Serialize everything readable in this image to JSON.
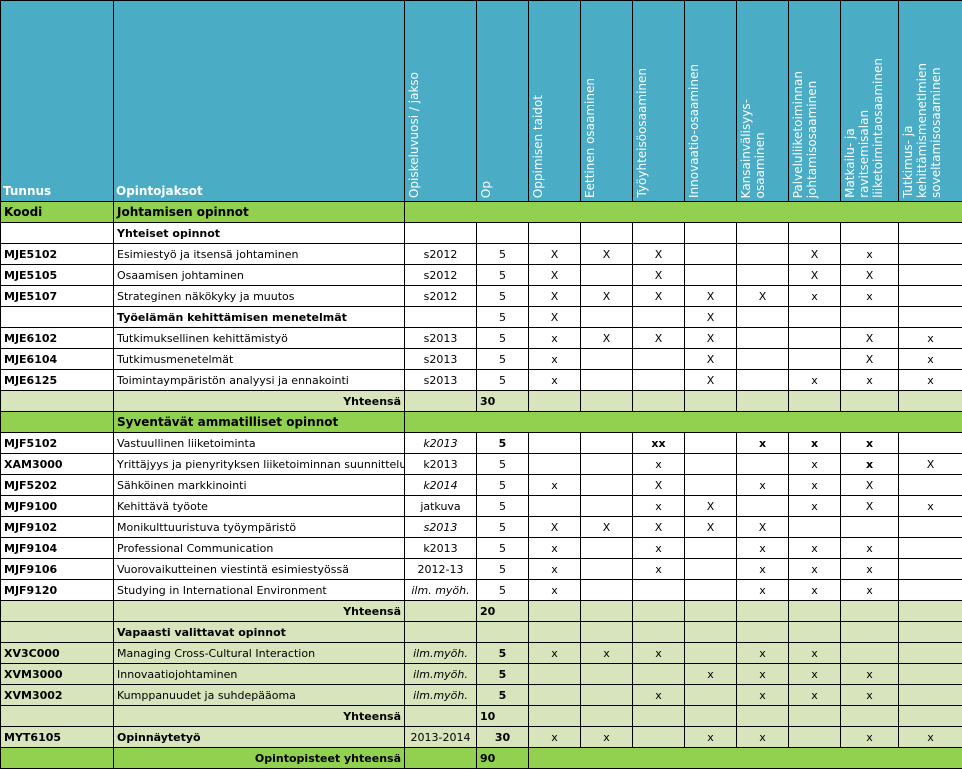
{
  "headers": {
    "tunnus": "Tunnus",
    "opintojaksot": "Opintojaksot",
    "year": "Opiskeluvuosi / jakso",
    "op": "Op",
    "competences": [
      "Oppimisen taidot",
      "Eettinen osaaminen",
      "Työyhteisöosaaminen",
      "Innovaatio-osaaminen",
      "Kansainvälisyys-\nosaaminen",
      "Palveluliiketoiminnan\njohtamisosaaminen",
      "Matkailu- ja\nravitsemisalan\nliiketoimintaosaaminen",
      "Tutkimus- ja\nkehittämismenetlmien\nsoveltamisosaaminen"
    ]
  },
  "colors": {
    "header": "#4bacc6",
    "section": "#92d050",
    "light": "#d8e4bc"
  },
  "rows": [
    {
      "type": "green",
      "code": "Koodi",
      "name": "Johtamisen opinnot"
    },
    {
      "type": "sub",
      "name": "Yhteiset opinnot"
    },
    {
      "type": "course",
      "code": "MJE5102",
      "name": "Esimiestyö ja itsensä johtaminen",
      "year": "s2012",
      "op": "5",
      "marks": [
        "X",
        "X",
        "X",
        "",
        "",
        "X",
        "x",
        ""
      ]
    },
    {
      "type": "course",
      "code": "MJE5105",
      "name": "Osaamisen johtaminen",
      "year": "s2012",
      "op": "5",
      "marks": [
        "X",
        "",
        "X",
        "",
        "",
        "X",
        "X",
        ""
      ]
    },
    {
      "type": "course",
      "code": "MJE5107",
      "name": "Strateginen näkökyky ja muutos",
      "year": "s2012",
      "op": "5",
      "marks": [
        "X",
        "X",
        "X",
        "X",
        "X",
        "x",
        "x",
        ""
      ]
    },
    {
      "type": "subcourse",
      "name": "Työelämän kehittämisen menetelmät",
      "op": "5",
      "marks": [
        "X",
        "",
        "",
        "X",
        "",
        "",
        "",
        ""
      ]
    },
    {
      "type": "course",
      "code": "MJE6102",
      "name": "Tutkimuksellinen kehittämistyö",
      "year": "s2013",
      "op": "5",
      "marks": [
        "x",
        "X",
        "X",
        "X",
        "",
        "",
        "X",
        "x"
      ]
    },
    {
      "type": "course",
      "code": "MJE6104",
      "name": "Tutkimusmenetelmät",
      "year": "s2013",
      "op": "5",
      "marks": [
        "x",
        "",
        "",
        "X",
        "",
        "",
        "X",
        "x"
      ]
    },
    {
      "type": "course",
      "code": "MJE6125",
      "name": "Toimintaympäristön analyysi ja ennakointi",
      "year": "s2013",
      "op": "5",
      "marks": [
        "x",
        "",
        "",
        "X",
        "",
        "x",
        "x",
        "x"
      ]
    },
    {
      "type": "sum",
      "name": "Yhteensä",
      "op": "30"
    },
    {
      "type": "green",
      "name": "Syventävät ammatilliset opinnot"
    },
    {
      "type": "course",
      "code": "MJF5102",
      "name": "Vastuullinen liiketoiminta",
      "year": "k2013",
      "italic": true,
      "op": "5",
      "bold": true,
      "marks": [
        "",
        "",
        "xx",
        "",
        "x",
        "x",
        "x",
        ""
      ]
    },
    {
      "type": "course",
      "code": "XAM3000",
      "name": "Yrittäjyys ja pienyrityksen liiketoiminnan suunnittelu",
      "year": "k2013",
      "op": "5",
      "marks": [
        "",
        "",
        "x",
        "",
        "",
        "x",
        "x",
        "X"
      ],
      "bold_cols": [
        6
      ]
    },
    {
      "type": "course",
      "code": "MJF5202",
      "name": "Sähköinen markkinointi",
      "year": "k2014",
      "italic": true,
      "op": "5",
      "marks": [
        "x",
        "",
        "X",
        "",
        "x",
        "x",
        "X",
        ""
      ]
    },
    {
      "type": "course",
      "code": "MJF9100",
      "name": "Kehittävä työote",
      "year": "jatkuva",
      "op": "5",
      "marks": [
        "",
        "",
        "x",
        "X",
        "",
        "x",
        "X",
        "x"
      ]
    },
    {
      "type": "course",
      "code": "MJF9102",
      "name": "Monikulttuuristuva työympäristö",
      "year": "s2013",
      "italic": true,
      "op": "5",
      "marks": [
        "X",
        "X",
        "X",
        "X",
        "X",
        "",
        "",
        ""
      ]
    },
    {
      "type": "course",
      "code": "MJF9104",
      "name": "Professional Communication",
      "year": "k2013",
      "op": "5",
      "marks": [
        "x",
        "",
        "x",
        "",
        "x",
        "x",
        "x",
        ""
      ]
    },
    {
      "type": "course",
      "code": "MJF9106",
      "name": "Vuorovaikutteinen viestintä esimiestyössä",
      "year": "2012-13",
      "op": "5",
      "marks": [
        "x",
        "",
        "x",
        "",
        "x",
        "x",
        "x",
        ""
      ]
    },
    {
      "type": "course",
      "code": "MJF9120",
      "name": "Studying in International Environment",
      "year": "ilm. myöh.",
      "italic": true,
      "op": "5",
      "marks": [
        "x",
        "",
        "",
        "",
        "x",
        "x",
        "x",
        ""
      ]
    },
    {
      "type": "sum",
      "name": "Yhteensä",
      "op": "20"
    },
    {
      "type": "sublight",
      "name": "Vapaasti valittavat opinnot"
    },
    {
      "type": "light",
      "code": "XV3C000",
      "name": "Managing  Cross-Cultural Interaction",
      "year": "ilm.myöh.",
      "italic": true,
      "op": "5",
      "opbold": true,
      "marks": [
        "x",
        "x",
        "x",
        "",
        "x",
        "x",
        "",
        ""
      ]
    },
    {
      "type": "light",
      "code": "XVM3000",
      "name": "Innovaatiojohtaminen",
      "year": "ilm.myöh.",
      "italic": true,
      "op": "5",
      "opbold": true,
      "marks": [
        "",
        "",
        "",
        "x",
        "x",
        "x",
        "x",
        ""
      ]
    },
    {
      "type": "light",
      "code": "XVM3002",
      "name": "Kumppanuudet ja suhdepääoma",
      "year": "ilm.myöh.",
      "italic": true,
      "op": "5",
      "opbold": true,
      "marks": [
        "",
        "",
        "x",
        "",
        "x",
        "x",
        "x",
        ""
      ]
    },
    {
      "type": "sum",
      "name": "Yhteensä",
      "op": "10"
    },
    {
      "type": "light",
      "code": "MYT6105",
      "name": "Opinnäytetyö",
      "namebold": true,
      "year": "2013-2014",
      "op": "30",
      "opbold": true,
      "marks": [
        "x",
        "x",
        "",
        "x",
        "x",
        "",
        "x",
        "x"
      ]
    },
    {
      "type": "total",
      "name": "Opintopisteet yhteensä",
      "op": "90"
    }
  ]
}
